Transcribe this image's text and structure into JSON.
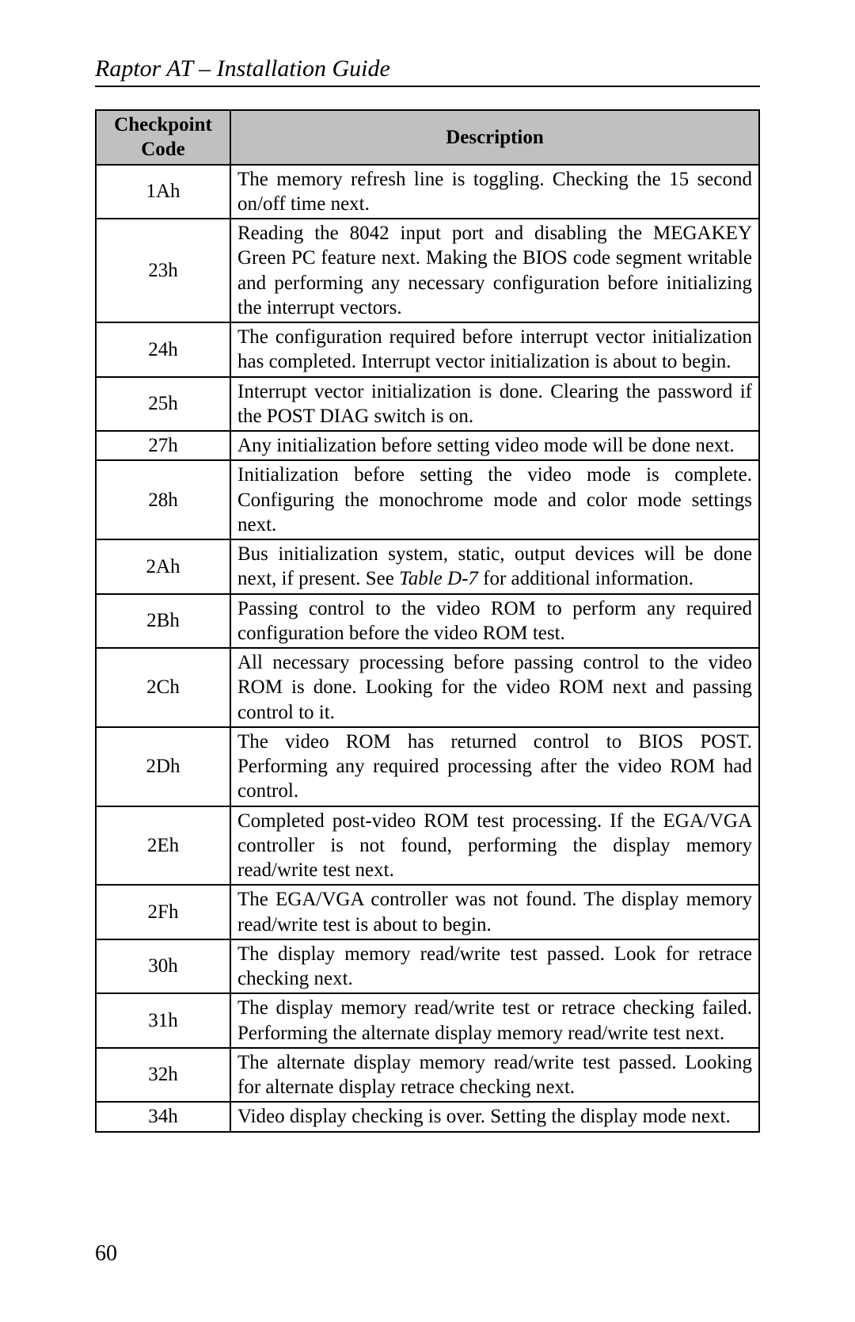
{
  "header": "Raptor AT – Installation Guide",
  "page_number": "60",
  "table": {
    "columns": {
      "code": "Checkpoint Code",
      "desc": "Description"
    },
    "rows": [
      {
        "code": "1Ah",
        "desc": "The memory refresh line is toggling. Checking the 15 second on/off time next."
      },
      {
        "code": "23h",
        "desc": "Reading the 8042 input port and disabling the MEGAKEY Green PC feature next. Making the BIOS code segment writable and performing any necessary configuration before initializing the interrupt vectors."
      },
      {
        "code": "24h",
        "desc": "The configuration required before interrupt vector initialization has completed. Interrupt vector initialization is about to begin."
      },
      {
        "code": "25h",
        "desc": "Interrupt vector initialization is done. Clearing the password if the POST DIAG switch is on."
      },
      {
        "code": "27h",
        "desc": "Any initialization before setting video mode will be done next."
      },
      {
        "code": "28h",
        "desc": "Initialization before setting the video mode is complete. Configuring the monochrome mode and color mode settings next."
      },
      {
        "code": "2Ah",
        "desc_pre": "Bus initialization system, static, output devices will be done next, if present. See ",
        "desc_ref": "Table D-7",
        "desc_post": " for additional information."
      },
      {
        "code": "2Bh",
        "desc": "Passing control to the video ROM to perform any required configuration before the video ROM test."
      },
      {
        "code": "2Ch",
        "desc": "All necessary processing before passing control to the video ROM is done. Looking for the video ROM next and passing control to it."
      },
      {
        "code": "2Dh",
        "desc": "The video ROM has returned control to BIOS POST. Performing any required processing after the video ROM had control."
      },
      {
        "code": "2Eh",
        "desc": "Completed post-video ROM test processing. If the EGA/VGA controller is not found, performing the display memory read/write test next."
      },
      {
        "code": "2Fh",
        "desc": "The EGA/VGA controller was not found. The display memory read/write test is about to begin."
      },
      {
        "code": "30h",
        "desc": "The display memory read/write test passed. Look for retrace checking next."
      },
      {
        "code": "31h",
        "desc": "The display memory read/write test or retrace checking failed. Performing the alternate display memory read/write test next."
      },
      {
        "code": "32h",
        "desc": "The alternate display memory read/write test passed. Looking for alternate display retrace checking next."
      },
      {
        "code": "34h",
        "desc": "Video display checking is over. Setting the display mode next."
      }
    ]
  }
}
